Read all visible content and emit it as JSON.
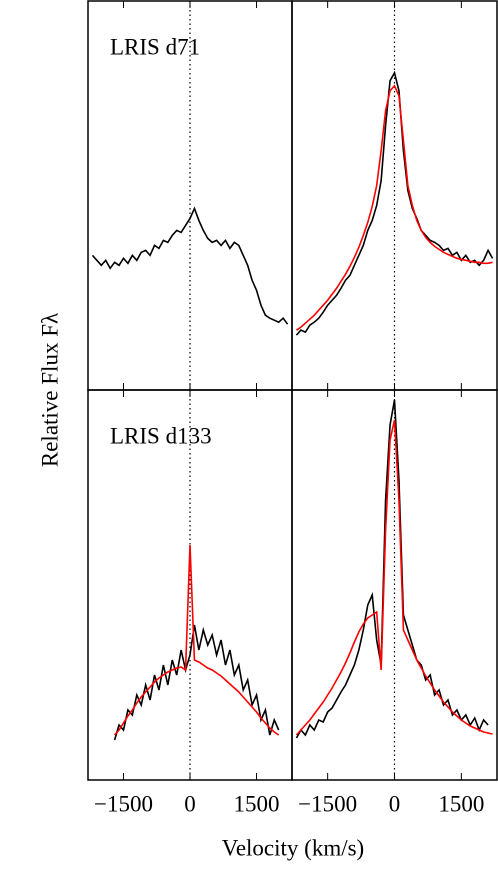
{
  "chart_data": [
    {
      "type": "line",
      "ylabel": "Relative Flux Fλ",
      "annotation": "LRIS d71",
      "xlim": [
        -2300,
        2300
      ],
      "ylim": [
        0,
        3.9
      ],
      "xticks": [
        -1500,
        0,
        1500
      ],
      "xtick_labels": false,
      "vline": 0,
      "x": [
        -2200,
        -2100,
        -2000,
        -1900,
        -1800,
        -1700,
        -1600,
        -1500,
        -1400,
        -1300,
        -1200,
        -1100,
        -1000,
        -900,
        -800,
        -700,
        -600,
        -500,
        -400,
        -300,
        -200,
        -100,
        0,
        100,
        200,
        300,
        400,
        500,
        600,
        700,
        800,
        900,
        1000,
        1100,
        1200,
        1300,
        1400,
        1500,
        1600,
        1700,
        1800,
        1900,
        2000,
        2100,
        2200
      ],
      "series": [
        {
          "color": "#000000",
          "values": [
            1.35,
            1.3,
            1.25,
            1.3,
            1.22,
            1.28,
            1.25,
            1.32,
            1.27,
            1.35,
            1.3,
            1.38,
            1.4,
            1.35,
            1.45,
            1.42,
            1.5,
            1.48,
            1.55,
            1.6,
            1.58,
            1.65,
            1.72,
            1.82,
            1.7,
            1.6,
            1.52,
            1.48,
            1.5,
            1.45,
            1.5,
            1.42,
            1.48,
            1.45,
            1.35,
            1.25,
            1.1,
            1.0,
            0.85,
            0.75,
            0.72,
            0.7,
            0.68,
            0.72,
            0.66
          ]
        }
      ]
    },
    {
      "type": "line",
      "xlim": [
        -2300,
        2300
      ],
      "ylim": [
        0,
        3.9
      ],
      "xticks": [
        -1500,
        0,
        1500
      ],
      "xtick_labels": false,
      "vline": 0,
      "x": [
        -2200,
        -2100,
        -2000,
        -1900,
        -1800,
        -1700,
        -1600,
        -1500,
        -1400,
        -1300,
        -1200,
        -1100,
        -1000,
        -900,
        -800,
        -700,
        -600,
        -500,
        -400,
        -300,
        -200,
        -100,
        0,
        100,
        200,
        300,
        400,
        500,
        600,
        700,
        800,
        900,
        1000,
        1100,
        1200,
        1300,
        1400,
        1500,
        1600,
        1700,
        1800,
        1900,
        2000,
        2100,
        2200
      ],
      "series": [
        {
          "color": "#000000",
          "values": [
            0.55,
            0.6,
            0.58,
            0.65,
            0.68,
            0.72,
            0.78,
            0.85,
            0.9,
            0.95,
            1.02,
            1.1,
            1.15,
            1.25,
            1.35,
            1.45,
            1.6,
            1.7,
            1.85,
            2.1,
            2.65,
            3.1,
            3.18,
            3.0,
            2.4,
            2.0,
            1.82,
            1.72,
            1.6,
            1.55,
            1.5,
            1.48,
            1.45,
            1.4,
            1.42,
            1.35,
            1.38,
            1.3,
            1.35,
            1.28,
            1.3,
            1.25,
            1.3,
            1.4,
            1.32
          ]
        },
        {
          "color": "#ff0000",
          "values": [
            0.6,
            0.63,
            0.67,
            0.71,
            0.75,
            0.8,
            0.85,
            0.9,
            0.96,
            1.02,
            1.09,
            1.16,
            1.24,
            1.33,
            1.43,
            1.55,
            1.68,
            1.84,
            2.05,
            2.4,
            2.8,
            3.0,
            3.05,
            2.95,
            2.5,
            2.05,
            1.85,
            1.7,
            1.6,
            1.53,
            1.48,
            1.44,
            1.41,
            1.38,
            1.36,
            1.34,
            1.32,
            1.31,
            1.3,
            1.29,
            1.28,
            1.28,
            1.27,
            1.27,
            1.28
          ]
        }
      ]
    },
    {
      "type": "line",
      "xlabel": "Velocity (km/s)",
      "annotation": "LRIS d133",
      "xlim": [
        -2300,
        2300
      ],
      "ylim": [
        0,
        3.9
      ],
      "xticks": [
        {
          "value": -1500,
          "label": "−1500"
        },
        0,
        1500
      ],
      "xtick_labels": true,
      "vline": 0,
      "x": [
        -2200,
        -2100,
        -2000,
        -1900,
        -1800,
        -1700,
        -1600,
        -1500,
        -1400,
        -1300,
        -1200,
        -1100,
        -1000,
        -900,
        -800,
        -700,
        -600,
        -500,
        -400,
        -300,
        -200,
        -100,
        0,
        100,
        200,
        300,
        400,
        500,
        600,
        700,
        800,
        900,
        1000,
        1100,
        1200,
        1300,
        1400,
        1500,
        1600,
        1700,
        1800,
        1900,
        2000,
        2100,
        2200
      ],
      "series": [
        {
          "color": "#000000",
          "values": [
            null,
            null,
            null,
            null,
            null,
            0.4,
            0.55,
            0.5,
            0.7,
            0.65,
            0.85,
            0.75,
            0.95,
            0.8,
            1.05,
            0.9,
            1.15,
            0.95,
            1.2,
            1.05,
            1.3,
            1.1,
            1.25,
            1.55,
            1.3,
            1.5,
            1.35,
            1.45,
            1.25,
            1.4,
            1.15,
            1.3,
            1.05,
            1.15,
            0.9,
            1.0,
            0.75,
            0.85,
            0.6,
            0.7,
            0.45,
            0.6,
            0.5,
            null,
            null
          ]
        },
        {
          "color": "#ff0000",
          "values": [
            null,
            null,
            null,
            null,
            null,
            0.45,
            0.5,
            0.57,
            0.64,
            0.7,
            0.77,
            0.83,
            0.88,
            0.93,
            0.98,
            1.02,
            1.05,
            1.08,
            1.1,
            1.12,
            1.13,
            1.1,
            2.35,
            1.2,
            1.18,
            1.15,
            1.12,
            1.1,
            1.07,
            1.04,
            1.0,
            0.96,
            0.92,
            0.88,
            0.83,
            0.78,
            0.73,
            0.68,
            0.62,
            0.57,
            0.52,
            0.48,
            0.45,
            null,
            null
          ]
        }
      ]
    },
    {
      "type": "line",
      "xlim": [
        -2300,
        2300
      ],
      "ylim": [
        0,
        3.9
      ],
      "xticks": [
        {
          "value": -1500,
          "label": "−1500"
        },
        0,
        1500
      ],
      "xtick_labels": true,
      "vline": 0,
      "x": [
        -2200,
        -2100,
        -2000,
        -1900,
        -1800,
        -1700,
        -1600,
        -1500,
        -1400,
        -1300,
        -1200,
        -1100,
        -1000,
        -900,
        -800,
        -700,
        -600,
        -500,
        -400,
        -300,
        -200,
        -100,
        0,
        100,
        200,
        300,
        400,
        500,
        600,
        700,
        800,
        900,
        1000,
        1100,
        1200,
        1300,
        1400,
        1500,
        1600,
        1700,
        1800,
        1900,
        2000,
        2100,
        2200
      ],
      "series": [
        {
          "color": "#000000",
          "values": [
            0.42,
            0.5,
            0.45,
            0.55,
            0.5,
            0.6,
            0.58,
            0.68,
            0.72,
            0.8,
            0.88,
            0.95,
            1.05,
            1.15,
            1.3,
            1.5,
            1.75,
            1.85,
            1.4,
            1.15,
            2.8,
            3.55,
            3.8,
            3.0,
            1.65,
            1.5,
            1.35,
            1.2,
            1.15,
            1.0,
            1.05,
            0.85,
            0.9,
            0.75,
            0.8,
            0.65,
            0.7,
            0.6,
            0.65,
            0.55,
            0.62,
            0.5,
            0.6,
            0.55,
            null
          ]
        },
        {
          "color": "#ff0000",
          "values": [
            0.45,
            0.5,
            0.55,
            0.6,
            0.66,
            0.72,
            0.78,
            0.85,
            0.92,
            1.0,
            1.08,
            1.17,
            1.27,
            1.38,
            1.48,
            1.56,
            1.62,
            1.65,
            1.68,
            1.1,
            2.5,
            3.4,
            3.6,
            2.8,
            1.5,
            1.4,
            1.3,
            1.2,
            1.12,
            1.04,
            0.97,
            0.9,
            0.84,
            0.78,
            0.73,
            0.68,
            0.64,
            0.6,
            0.57,
            0.54,
            0.52,
            0.5,
            0.48,
            0.47,
            0.46
          ]
        }
      ]
    }
  ]
}
